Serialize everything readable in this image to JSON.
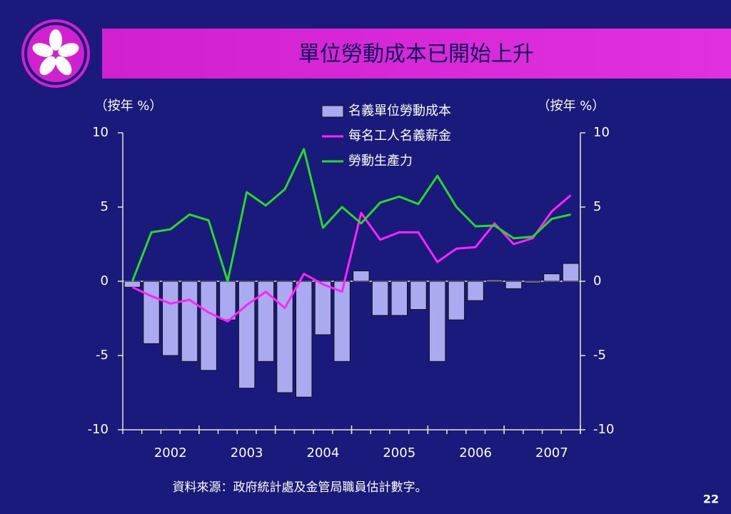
{
  "chart_data": {
    "type": "bar_line",
    "title": "單位勞動成本已開始上升",
    "y_label": "（按年 %）",
    "y2_label": "（按年 %）",
    "categories": [
      null,
      null,
      "2002",
      null,
      null,
      null,
      "2003",
      null,
      null,
      null,
      "2004",
      null,
      null,
      null,
      "2005",
      null,
      null,
      null,
      "2006",
      null,
      null,
      null,
      "2007",
      null
    ],
    "series": [
      {
        "name": "名義單位勞動成本",
        "type": "bar",
        "color": "#aaaaf0",
        "values": [
          -0.4,
          -4.2,
          -5.0,
          -5.4,
          -6.0,
          -2.6,
          -7.2,
          -5.4,
          -7.5,
          -7.8,
          -3.6,
          -5.4,
          0.7,
          -2.3,
          -2.3,
          -1.9,
          -5.4,
          -2.6,
          -1.3,
          0.1,
          -0.5,
          -0.1,
          0.5,
          1.2
        ]
      },
      {
        "name": "每名工人名義薪金",
        "type": "line",
        "color": "#ff22ff",
        "values": [
          -0.4,
          -1.0,
          -1.5,
          -1.25,
          -2.1,
          -2.7,
          -1.6,
          -0.7,
          -1.8,
          0.5,
          -0.2,
          -0.7,
          4.6,
          2.8,
          3.3,
          3.3,
          1.3,
          2.2,
          2.3,
          3.9,
          2.5,
          2.9,
          4.7,
          5.8
        ]
      },
      {
        "name": "勞動生產力",
        "type": "line",
        "color": "#22dd22",
        "values": [
          0,
          3.3,
          3.5,
          4.5,
          4.1,
          0,
          6.0,
          5.1,
          6.2,
          8.9,
          3.6,
          5.0,
          3.9,
          5.3,
          5.7,
          5.2,
          7.1,
          5.0,
          3.7,
          3.75,
          2.9,
          3.0,
          4.2,
          4.5
        ]
      }
    ],
    "ylim": [
      -10,
      10
    ],
    "yticks": [
      -10,
      -5,
      0,
      5,
      10
    ],
    "y2lim": [
      -10,
      10
    ],
    "y2ticks": [
      -10,
      -5,
      0,
      5,
      10
    ]
  },
  "source": "資料來源：政府統計處及金管局職員估計數字。",
  "page_number": "22"
}
